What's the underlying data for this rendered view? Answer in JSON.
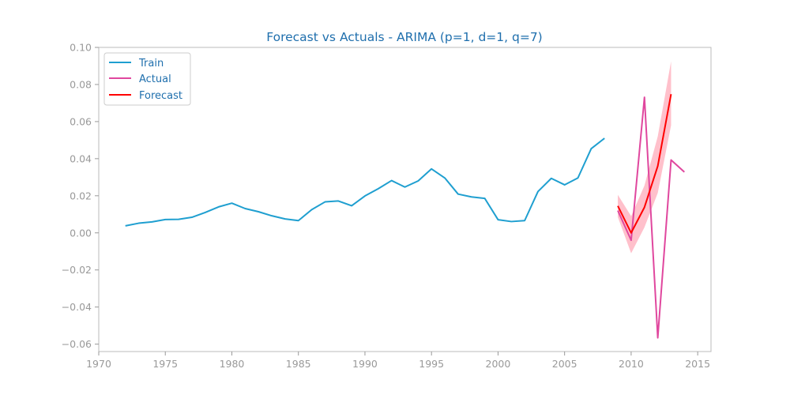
{
  "chart_data": {
    "type": "line",
    "title": "Forecast vs Actuals - ARIMA (p=1, d=1, q=7)",
    "xlabel": "",
    "ylabel": "",
    "xlim": [
      1970,
      2016
    ],
    "ylim": [
      -0.064,
      0.1
    ],
    "xticks": [
      1970,
      1975,
      1980,
      1985,
      1990,
      1995,
      2000,
      2005,
      2010,
      2015
    ],
    "yticks": [
      -0.06,
      -0.04,
      -0.02,
      0.0,
      0.02,
      0.04,
      0.06,
      0.08,
      0.1
    ],
    "xtick_labels": [
      "1970",
      "1975",
      "1980",
      "1985",
      "1990",
      "1995",
      "2000",
      "2005",
      "2010",
      "2015"
    ],
    "ytick_labels": [
      "−0.06",
      "−0.04",
      "−0.02",
      "0.00",
      "0.02",
      "0.04",
      "0.06",
      "0.08",
      "0.10"
    ],
    "grid": false,
    "legend_position": "top-left",
    "series": [
      {
        "name": "Train",
        "color": "#1f9fd0",
        "x": [
          1972,
          1973,
          1974,
          1975,
          1976,
          1977,
          1978,
          1979,
          1980,
          1981,
          1982,
          1983,
          1984,
          1985,
          1986,
          1987,
          1988,
          1989,
          1990,
          1991,
          1992,
          1993,
          1994,
          1995,
          1996,
          1997,
          1998,
          1999,
          2000,
          2001,
          2002,
          2003,
          2004,
          2005,
          2006,
          2007,
          2008
        ],
        "values": [
          0.0038,
          0.0052,
          0.0059,
          0.0072,
          0.0073,
          0.0084,
          0.011,
          0.014,
          0.016,
          0.0131,
          0.0114,
          0.0092,
          0.0075,
          0.0066,
          0.0125,
          0.0167,
          0.0172,
          0.0146,
          0.0199,
          0.0238,
          0.0282,
          0.0247,
          0.028,
          0.0345,
          0.0296,
          0.0209,
          0.0194,
          0.0186,
          0.0071,
          0.0061,
          0.0066,
          0.0223,
          0.0294,
          0.0259,
          0.0296,
          0.0454,
          0.051
        ]
      },
      {
        "name": "Actual",
        "color": "#e0479e",
        "x": [
          2009,
          2010,
          2011,
          2012,
          2013,
          2014
        ],
        "values": [
          0.012,
          -0.004,
          0.0731,
          -0.0566,
          0.0393,
          0.0328
        ]
      },
      {
        "name": "Forecast",
        "color": "#ff0000",
        "x": [
          2009,
          2010,
          2011,
          2012,
          2013
        ],
        "values": [
          0.0145,
          0.0,
          0.0138,
          0.036,
          0.0748
        ]
      }
    ],
    "confidence_band": {
      "color": "#ffc0cb",
      "x": [
        2009,
        2010,
        2011,
        2012,
        2013
      ],
      "lower": [
        0.0085,
        -0.011,
        0.003,
        0.0215,
        0.058
      ],
      "upper": [
        0.0205,
        0.009,
        0.0255,
        0.052,
        0.0925
      ]
    }
  }
}
